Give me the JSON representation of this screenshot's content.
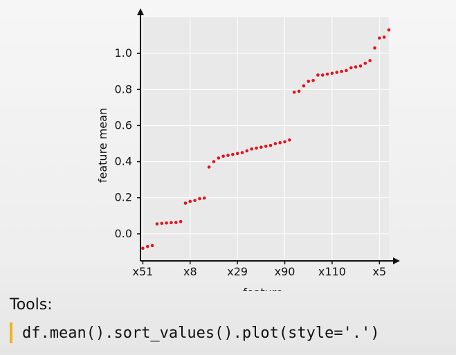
{
  "slide": {
    "tools_label": "Tools:",
    "code": "df.mean().sort_values().plot(style='.')",
    "colors": {
      "accent_bar": "#f2b21b",
      "points": "#e3131b",
      "plot_background": "#e9e9e9",
      "axes": "#111111"
    }
  },
  "chart_data": {
    "type": "scatter",
    "title": "",
    "xlabel": "feature",
    "ylabel": "feature mean",
    "grid": true,
    "xticks": [
      "x51",
      "x8",
      "x29",
      "x90",
      "x110",
      "x5"
    ],
    "xtick_index": [
      0,
      10,
      20,
      30,
      40,
      50
    ],
    "yticks": [
      "0.0",
      "0.2",
      "0.4",
      "0.6",
      "0.8",
      "1.0"
    ],
    "ytick_values": [
      0.0,
      0.2,
      0.4,
      0.6,
      0.8,
      1.0
    ],
    "ylim": [
      -0.15,
      1.2
    ],
    "xlim": [
      -0.5,
      52
    ],
    "x": [
      0,
      1,
      2,
      3,
      4,
      5,
      6,
      7,
      8,
      9,
      10,
      11,
      12,
      13,
      14,
      15,
      16,
      17,
      18,
      19,
      20,
      21,
      22,
      23,
      24,
      25,
      26,
      27,
      28,
      29,
      30,
      31,
      32,
      33,
      34,
      35,
      36,
      37,
      38,
      39,
      40,
      41,
      42,
      43,
      44,
      45,
      46,
      47,
      48,
      49,
      50,
      51,
      52
    ],
    "y": [
      -0.08,
      -0.07,
      -0.065,
      0.055,
      0.058,
      0.06,
      0.062,
      0.063,
      0.068,
      0.17,
      0.18,
      0.185,
      0.195,
      0.198,
      0.37,
      0.4,
      0.42,
      0.43,
      0.435,
      0.44,
      0.445,
      0.45,
      0.46,
      0.47,
      0.475,
      0.48,
      0.485,
      0.49,
      0.5,
      0.505,
      0.51,
      0.52,
      0.785,
      0.79,
      0.82,
      0.845,
      0.85,
      0.88,
      0.88,
      0.885,
      0.89,
      0.895,
      0.9,
      0.905,
      0.92,
      0.925,
      0.93,
      0.945,
      0.96,
      1.03,
      1.085,
      1.09,
      1.13
    ]
  }
}
